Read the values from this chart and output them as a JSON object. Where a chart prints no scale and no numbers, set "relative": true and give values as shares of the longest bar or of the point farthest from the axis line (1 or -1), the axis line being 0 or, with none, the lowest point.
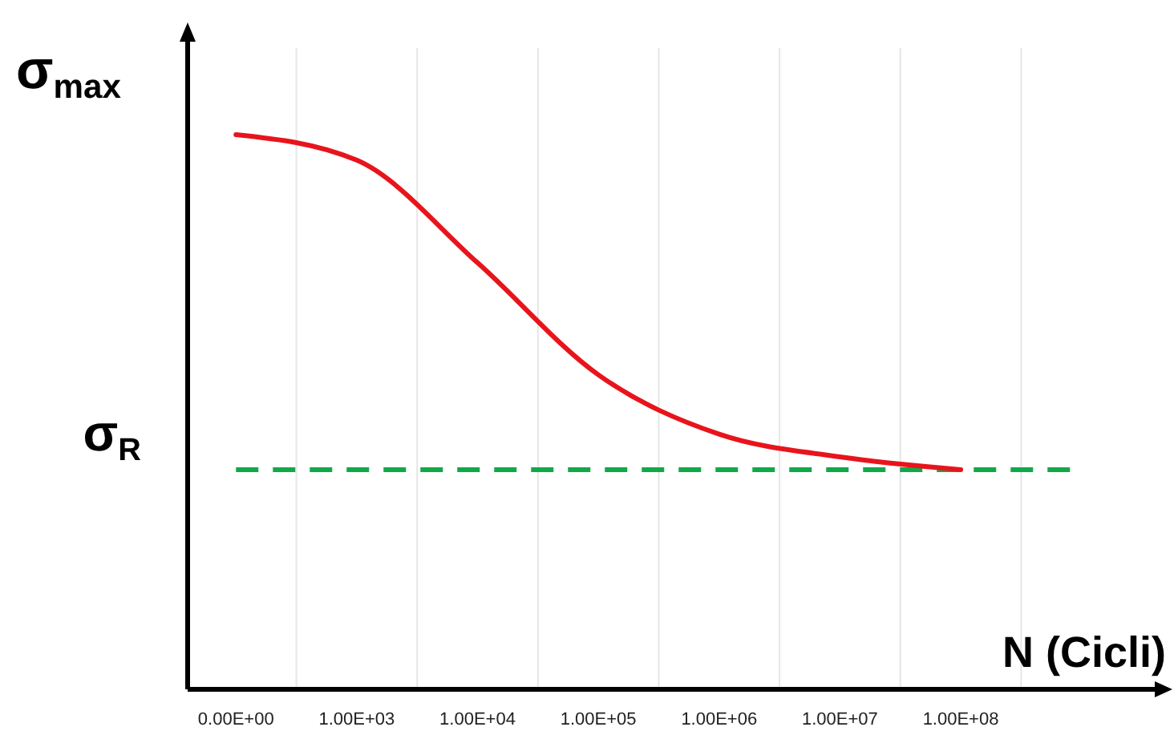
{
  "chart_data": {
    "type": "line",
    "relative": true,
    "ylabel": "σ$_{max}$",
    "xlabel": "N (Cicli)",
    "categories": [
      "0.00E+00",
      "1.00E+03",
      "1.00E+04",
      "1.00E+05",
      "1.00E+06",
      "1.00E+07",
      "1.00E+08"
    ],
    "series": [
      {
        "color": "#e8141c",
        "values": [
          1,
          0.954,
          0.769,
          0.567,
          0.46,
          0.419,
          0.396
        ]
      }
    ],
    "ref_lines": [
      {
        "axis": "y",
        "value": 0.396,
        "label": "σ$_{R}$",
        "color": "#12a84a",
        "line_style": "dashed"
      }
    ],
    "grid": "x",
    "marker": "none",
    "line_style": "solid"
  }
}
